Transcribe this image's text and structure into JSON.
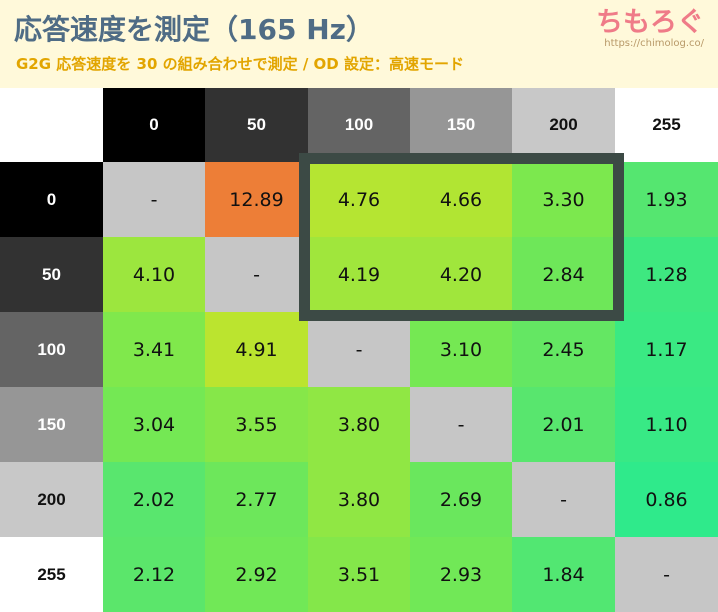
{
  "header": {
    "title": "応答速度を測定（165 Hz）",
    "subtitle": "G2G 応答速度を 30 の組み合わせで測定 / OD 設定：高速モード",
    "logo_text": "ちもろぐ",
    "logo_url": "https://chimolog.co/"
  },
  "colors": {
    "header_bg": "#fff9da",
    "title": "#4f6c85",
    "subtitle": "#e2a500",
    "logo": "#ef7b88",
    "highlight_border": "#3c4a45",
    "diagonal": "#c6c6c6"
  },
  "chart_data": {
    "type": "heatmap",
    "title": "応答速度を測定（165 Hz）",
    "subtitle": "G2G 応答速度を 30 の組み合わせで測定 / OD 設定：高速モード",
    "columns": [
      "0",
      "50",
      "100",
      "150",
      "200",
      "255"
    ],
    "rows": [
      "0",
      "50",
      "100",
      "150",
      "200",
      "255"
    ],
    "values": [
      [
        "-",
        "12.89",
        "4.76",
        "4.66",
        "3.30",
        "1.93"
      ],
      [
        "4.10",
        "-",
        "4.19",
        "4.20",
        "2.84",
        "1.28"
      ],
      [
        "3.41",
        "4.91",
        "-",
        "3.10",
        "2.45",
        "1.17"
      ],
      [
        "3.04",
        "3.55",
        "3.80",
        "-",
        "2.01",
        "1.10"
      ],
      [
        "2.02",
        "2.77",
        "3.80",
        "2.69",
        "-",
        "0.86"
      ],
      [
        "2.12",
        "2.92",
        "3.51",
        "2.93",
        "1.84",
        "-"
      ]
    ],
    "highlight": {
      "rows": [
        "0",
        "50"
      ],
      "columns": [
        "100",
        "150",
        "200"
      ]
    }
  }
}
